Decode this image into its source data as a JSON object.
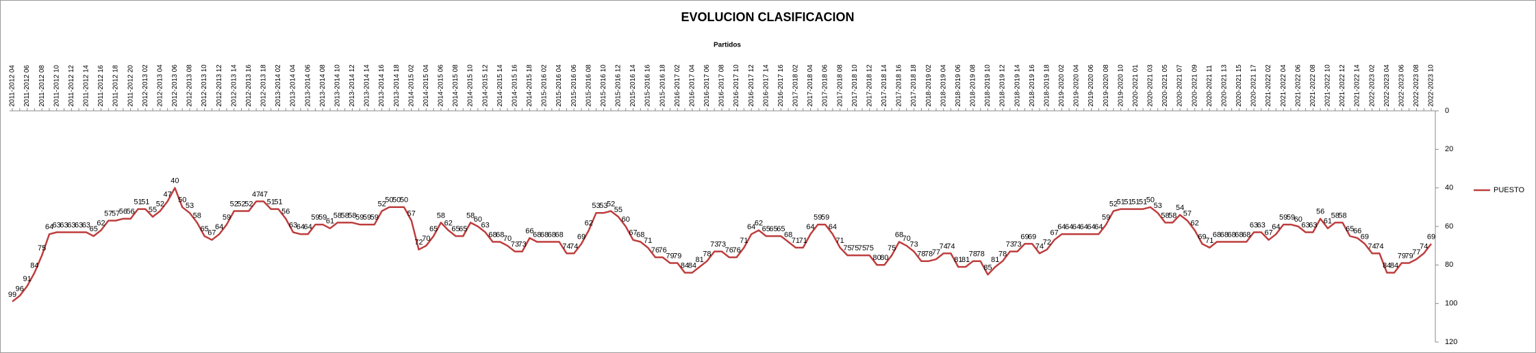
{
  "chart_data": {
    "type": "line",
    "title": "EVOLUCION CLASIFICACION",
    "x_label": "Partidos",
    "categories": [
      "2011-2012 04",
      null,
      "2011-2012 06",
      null,
      "2011-2012 08",
      null,
      "2011-2012 10",
      null,
      "2011-2012 12",
      null,
      "2011-2012 14",
      null,
      "2011-2012 16",
      null,
      "2011-2012 18",
      null,
      "2011-2012 20",
      null,
      "2012-2013 02",
      null,
      "2012-2013 04",
      null,
      "2012-2013 06",
      null,
      "2012-2013 08",
      null,
      "2012-2013 10",
      null,
      "2012-2013 12",
      null,
      "2012-2013 14",
      null,
      "2012-2013 16",
      null,
      "2012-2013 18",
      null,
      "2013-2014 02",
      null,
      "2013-2014 04",
      null,
      "2013-2014 06",
      null,
      "2013-2014 08",
      null,
      "2013-2014 10",
      null,
      "2013-2014 12",
      null,
      "2013-2014 14",
      null,
      "2013-2014 16",
      null,
      "2013-2014 18",
      null,
      "2014-2015 02",
      null,
      "2014-2015 04",
      null,
      "2014-2015 06",
      null,
      "2014-2015 08",
      null,
      "2014-2015 10",
      null,
      "2014-2015 12",
      null,
      "2014-2015 14",
      null,
      "2014-2015 16",
      null,
      "2014-2015 18",
      null,
      "2015-2016 02",
      null,
      "2015-2016 04",
      null,
      "2015-2016 06",
      null,
      "2015-2016 08",
      null,
      "2015-2016 10",
      null,
      "2015-2016 12",
      null,
      "2015-2016 14",
      null,
      "2015-2016 16",
      null,
      "2015-2016 18",
      null,
      "2016-2017 02",
      null,
      "2016-2017 04",
      null,
      "2016-2017 06",
      null,
      "2016-2017 08",
      null,
      "2016-2017 10",
      null,
      "2016-2017 12",
      null,
      "2016-2017 14",
      null,
      "2016-2017 16",
      null,
      "2017-2018 02",
      null,
      "2017-2018 04",
      null,
      "2017-2018 06",
      null,
      "2017-2018 08",
      null,
      "2017-2018 10",
      null,
      "2017-2018 12",
      null,
      "2017-2018 14",
      null,
      "2017-2018 16",
      null,
      "2017-2018 18",
      null,
      "2018-2019 02",
      null,
      "2018-2019 04",
      null,
      "2018-2019 06",
      null,
      "2018-2019 08",
      null,
      "2018-2019 10",
      null,
      "2018-2019 12",
      null,
      "2018-2019 14",
      null,
      "2018-2019 16",
      null,
      "2018-2019 18",
      null,
      "2019-2020 02",
      null,
      "2019-2020 04",
      null,
      "2019-2020 06",
      null,
      "2019-2020 08",
      null,
      "2019-2020 10",
      null,
      "2020-2021 01",
      null,
      "2020-2021 03",
      null,
      "2020-2021 05",
      null,
      "2020-2021 07",
      null,
      "2020-2021 09",
      null,
      "2020-2021 11",
      null,
      "2020-2021 13",
      null,
      "2020-2021 15",
      null,
      "2020-2021 17",
      null,
      "2021-2022 02",
      null,
      "2021-2022 04",
      null,
      "2021-2022 06",
      null,
      "2021-2022 08",
      null,
      "2021-2022 10",
      null,
      "2021-2022 12",
      null,
      "2021-2022 14",
      null,
      "2022-2023 02",
      null,
      "2022-2023 04",
      null,
      "2022-2023 06",
      null,
      "2022-2023 08",
      null,
      "2022-2023 10"
    ],
    "series": [
      {
        "name": "PUESTO",
        "color": "#be3c3c",
        "values": [
          99,
          96,
          91,
          84,
          75,
          64,
          63,
          63,
          63,
          63,
          63,
          65,
          62,
          57,
          57,
          56,
          56,
          51,
          51,
          55,
          52,
          47,
          40,
          50,
          53,
          58,
          65,
          67,
          64,
          59,
          52,
          52,
          52,
          47,
          47,
          51,
          51,
          56,
          63,
          64,
          64,
          59,
          59,
          61,
          58,
          58,
          58,
          59,
          59,
          59,
          52,
          50,
          50,
          50,
          57,
          72,
          70,
          65,
          58,
          62,
          65,
          65,
          58,
          60,
          63,
          68,
          68,
          70,
          73,
          73,
          66,
          68,
          68,
          68,
          68,
          74,
          74,
          69,
          62,
          53,
          53,
          52,
          55,
          60,
          67,
          68,
          71,
          76,
          76,
          79,
          79,
          84,
          84,
          81,
          78,
          73,
          73,
          76,
          76,
          71,
          64,
          62,
          65,
          65,
          65,
          68,
          71,
          71,
          64,
          59,
          59,
          64,
          71,
          75,
          75,
          75,
          75,
          80,
          80,
          75,
          68,
          70,
          73,
          78,
          78,
          77,
          74,
          74,
          81,
          81,
          78,
          78,
          85,
          81,
          78,
          73,
          73,
          69,
          69,
          74,
          72,
          67,
          64,
          64,
          64,
          64,
          64,
          64,
          59,
          52,
          51,
          51,
          51,
          51,
          50,
          53,
          58,
          58,
          54,
          57,
          62,
          69,
          71,
          68,
          68,
          68,
          68,
          68,
          63,
          63,
          67,
          64,
          59,
          59,
          60,
          63,
          63,
          56,
          61,
          58,
          58,
          65,
          66,
          69,
          74,
          74,
          84,
          84,
          79,
          79,
          77,
          74,
          69
        ]
      }
    ],
    "ylim": [
      0,
      120
    ],
    "yticks": [
      0,
      20,
      40,
      60,
      80,
      100,
      120
    ],
    "y_reversed": true,
    "y_axis_side": "right",
    "legend": "right"
  }
}
